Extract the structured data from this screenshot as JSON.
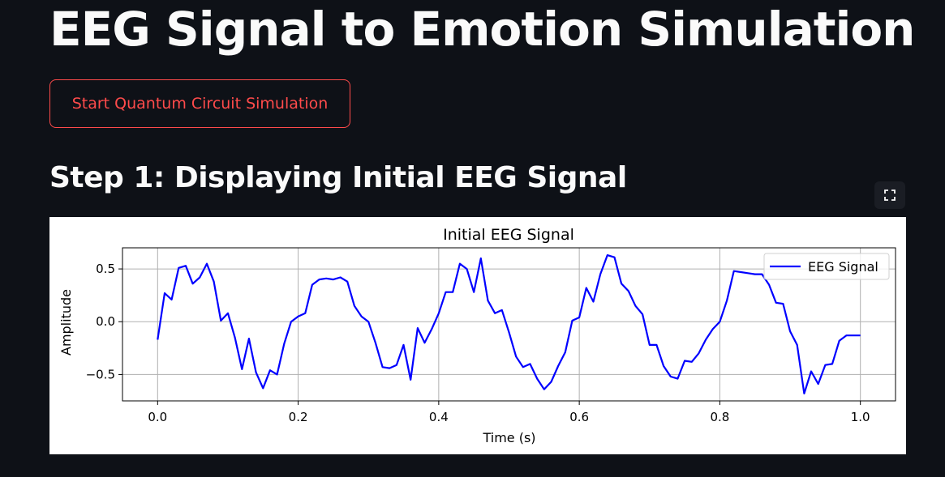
{
  "page": {
    "title": "EEG Signal to Emotion Simulation",
    "start_button_label": "Start Quantum Circuit Simulation",
    "step1_heading": "Step 1: Displaying Initial EEG Signal",
    "fullscreen_icon": "fullscreen-icon"
  },
  "colors": {
    "background": "#0e1117",
    "accent": "#ff4b4b",
    "series": "#0000ff"
  },
  "chart_data": {
    "type": "line",
    "title": "Initial EEG Signal",
    "xlabel": "Time (s)",
    "ylabel": "Amplitude",
    "xlim": [
      -0.05,
      1.05
    ],
    "ylim": [
      -0.75,
      0.7
    ],
    "xticks": [
      0.0,
      0.2,
      0.4,
      0.6,
      0.8,
      1.0
    ],
    "xtick_labels": [
      "0.0",
      "0.2",
      "0.4",
      "0.6",
      "0.8",
      "1.0"
    ],
    "yticks": [
      -0.5,
      0.0,
      0.5
    ],
    "ytick_labels": [
      "−0.5",
      "0.0",
      "0.5"
    ],
    "grid": true,
    "legend_position": "top-right",
    "series": [
      {
        "name": "EEG Signal",
        "color": "#0000ff",
        "x": [
          0.0,
          0.01,
          0.02,
          0.03,
          0.04,
          0.05,
          0.06,
          0.07,
          0.08,
          0.09,
          0.1,
          0.11,
          0.12,
          0.13,
          0.14,
          0.15,
          0.16,
          0.17,
          0.18,
          0.19,
          0.2,
          0.21,
          0.22,
          0.23,
          0.24,
          0.25,
          0.26,
          0.27,
          0.28,
          0.29,
          0.3,
          0.31,
          0.32,
          0.33,
          0.34,
          0.35,
          0.36,
          0.37,
          0.38,
          0.39,
          0.4,
          0.41,
          0.42,
          0.43,
          0.44,
          0.45,
          0.46,
          0.47,
          0.48,
          0.49,
          0.5,
          0.51,
          0.52,
          0.53,
          0.54,
          0.55,
          0.56,
          0.57,
          0.58,
          0.59,
          0.6,
          0.61,
          0.62,
          0.63,
          0.64,
          0.65,
          0.66,
          0.67,
          0.68,
          0.69,
          0.7,
          0.71,
          0.72,
          0.73,
          0.74,
          0.75,
          0.76,
          0.77,
          0.78,
          0.79,
          0.8,
          0.81,
          0.82,
          0.83,
          0.84,
          0.85,
          0.86,
          0.87,
          0.88,
          0.89,
          0.9,
          0.91,
          0.92,
          0.93,
          0.94,
          0.95,
          0.96,
          0.97,
          0.98,
          0.99,
          1.0
        ],
        "y": [
          -0.17,
          0.27,
          0.21,
          0.51,
          0.53,
          0.36,
          0.42,
          0.55,
          0.38,
          0.01,
          0.08,
          -0.15,
          -0.45,
          -0.16,
          -0.48,
          -0.63,
          -0.46,
          -0.5,
          -0.21,
          0.0,
          0.05,
          0.08,
          0.35,
          0.4,
          0.41,
          0.4,
          0.42,
          0.38,
          0.15,
          0.05,
          0.0,
          -0.2,
          -0.43,
          -0.44,
          -0.41,
          -0.22,
          -0.55,
          -0.06,
          -0.2,
          -0.07,
          0.08,
          0.28,
          0.28,
          0.55,
          0.5,
          0.28,
          0.6,
          0.2,
          0.08,
          0.11,
          -0.1,
          -0.33,
          -0.43,
          -0.4,
          -0.54,
          -0.64,
          -0.57,
          -0.42,
          -0.29,
          0.01,
          0.04,
          0.32,
          0.19,
          0.45,
          0.63,
          0.61,
          0.36,
          0.29,
          0.15,
          0.07,
          -0.22,
          -0.22,
          -0.42,
          -0.52,
          -0.54,
          -0.37,
          -0.38,
          -0.3,
          -0.17,
          -0.07,
          0.0,
          0.2,
          0.48,
          0.47,
          0.46,
          0.45,
          0.45,
          0.35,
          0.18,
          0.17,
          -0.09,
          -0.22,
          -0.68,
          -0.47,
          -0.59,
          -0.41,
          -0.4,
          -0.18,
          -0.13,
          -0.13,
          -0.13
        ]
      }
    ]
  }
}
